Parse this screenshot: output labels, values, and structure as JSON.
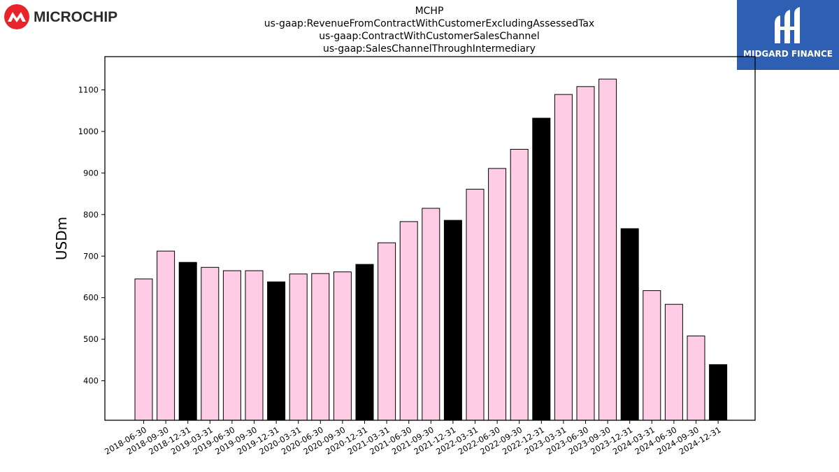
{
  "logos": {
    "left_brand": "MICROCHIP",
    "right_brand": "MIDGARD FINANCE"
  },
  "colors": {
    "pink": "#ffcce6",
    "black": "#000000",
    "microchip_red": "#e8232a",
    "midgard_blue": "#2f5fb3"
  },
  "chart_data": {
    "type": "bar",
    "title_lines": [
      "MCHP",
      "us-gaap:RevenueFromContractWithCustomerExcludingAssessedTax",
      "us-gaap:ContractWithCustomerSalesChannel",
      "us-gaap:SalesChannelThroughIntermediary"
    ],
    "ylabel": "USDm",
    "xlabel": "",
    "ylim": [
      305,
      1180
    ],
    "yticks": [
      400,
      500,
      600,
      700,
      800,
      900,
      1000,
      1100
    ],
    "categories": [
      "2018-06-30",
      "2018-09-30",
      "2018-12-31",
      "2019-03-31",
      "2019-06-30",
      "2019-09-30",
      "2019-12-31",
      "2020-03-31",
      "2020-06-30",
      "2020-09-30",
      "2020-12-31",
      "2021-03-31",
      "2021-06-30",
      "2021-09-30",
      "2021-12-31",
      "2022-03-31",
      "2022-06-30",
      "2022-09-30",
      "2022-12-31",
      "2023-03-31",
      "2023-06-30",
      "2023-09-30",
      "2023-12-31",
      "2024-03-31",
      "2024-06-30",
      "2024-09-30",
      "2024-12-31"
    ],
    "values": [
      645,
      712,
      685,
      673,
      665,
      665,
      638,
      657,
      658,
      662,
      680,
      732,
      783,
      815,
      786,
      861,
      911,
      957,
      1032,
      1089,
      1108,
      1126,
      766,
      617,
      584,
      508,
      439
    ],
    "bar_colors": [
      "pink",
      "pink",
      "black",
      "pink",
      "pink",
      "pink",
      "black",
      "pink",
      "pink",
      "pink",
      "black",
      "pink",
      "pink",
      "pink",
      "black",
      "pink",
      "pink",
      "pink",
      "black",
      "pink",
      "pink",
      "pink",
      "black",
      "pink",
      "pink",
      "pink",
      "black"
    ],
    "grid": false,
    "legend": "none"
  }
}
